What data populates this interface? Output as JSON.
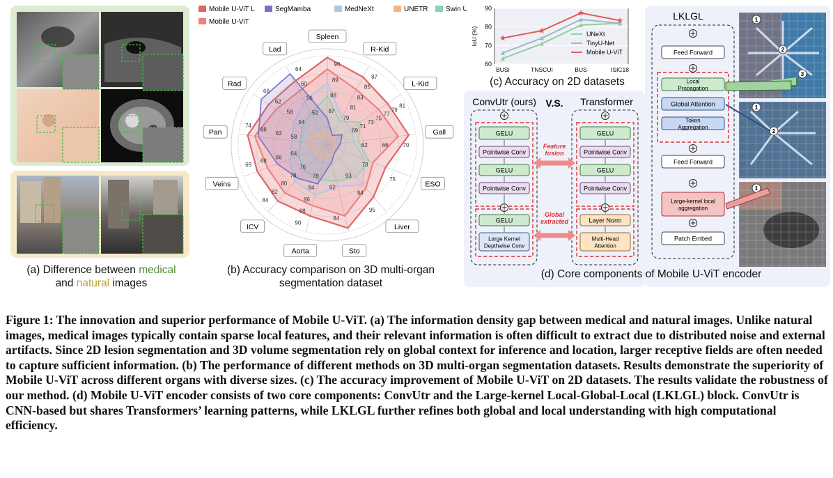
{
  "panel_a": {
    "caption_prefix": "(a) Difference between ",
    "caption_medical": "medical",
    "caption_and": "and ",
    "caption_natural": "natural",
    "caption_suffix": " images",
    "colors": {
      "medical": "#4f8f34",
      "natural": "#c8a12a",
      "medical_bg": "#dcebd2",
      "natural_bg": "#f6e9c8"
    }
  },
  "panel_b": {
    "caption_line1": "(b) Accuracy comparison on 3D multi-organ",
    "caption_line2": "segmentation dataset",
    "chart_data": {
      "type": "radar",
      "legend": [
        "Mobile U-ViT L",
        "SegMamba",
        "MedNeXt",
        "UNETR",
        "Swin UNETR",
        "Mobile U-ViT"
      ],
      "axes": [
        "Spleen",
        "R-Kid",
        "L-Kid",
        "Gall",
        "ESO",
        "Liver",
        "Sto",
        "Aorta",
        "ICV",
        "Veins",
        "Pan",
        "Rad",
        "Lad"
      ],
      "tick_labels": [
        [
          "87",
          "88",
          "89",
          "90"
        ],
        [
          "79",
          "81",
          "83",
          "85",
          "87"
        ],
        [
          "69",
          "71",
          "73",
          "75",
          "77",
          "79",
          "81"
        ],
        [
          "62",
          "66",
          "70"
        ],
        [
          "73",
          "75"
        ],
        [
          "93",
          "94",
          "95"
        ],
        [
          "92",
          "84"
        ],
        [
          "78",
          "84",
          "86",
          "88",
          "90"
        ],
        [
          "76",
          "78",
          "80",
          "82",
          "84"
        ],
        [
          "64",
          "66",
          "68",
          "69"
        ],
        [
          "58",
          "63",
          "68",
          "74"
        ],
        [
          "54",
          "58",
          "62",
          "66"
        ],
        [
          "52",
          "56",
          "60",
          "64"
        ]
      ],
      "series": [
        {
          "name": "Mobile U-ViT L",
          "values": [
            0.98,
            0.86,
            0.82,
            0.92,
            0.7,
            0.78,
            0.96,
            0.82,
            0.84,
            0.84,
            0.9,
            0.8,
            0.8
          ]
        },
        {
          "name": "SegMamba",
          "values": [
            0.3,
            0.12,
            0.2,
            0.15,
            0.12,
            0.12,
            0.2,
            0.45,
            0.5,
            0.6,
            0.78,
            0.9,
            0.9
          ]
        },
        {
          "name": "MedNeXt",
          "values": [
            0.7,
            0.35,
            0.32,
            0.3,
            0.45,
            0.6,
            0.48,
            0.58,
            0.55,
            0.45,
            0.4,
            0.45,
            0.55
          ]
        },
        {
          "name": "UNETR",
          "values": [
            0.15,
            0.08,
            0.1,
            0.1,
            0.08,
            0.1,
            0.12,
            0.15,
            0.15,
            0.18,
            0.2,
            0.2,
            0.15
          ]
        },
        {
          "name": "Swin UNETR",
          "values": [
            0.55,
            0.3,
            0.45,
            0.35,
            0.5,
            0.48,
            0.42,
            0.4,
            0.38,
            0.35,
            0.3,
            0.35,
            0.4
          ]
        },
        {
          "name": "Mobile U-ViT",
          "values": [
            0.85,
            0.7,
            0.7,
            0.8,
            0.55,
            0.65,
            0.82,
            0.7,
            0.72,
            0.72,
            0.82,
            0.7,
            0.68
          ]
        }
      ],
      "colors": [
        "#e06666",
        "#7b6fc4",
        "#a8c8e8",
        "#f4b183",
        "#8fd1b0",
        "#f08080"
      ]
    }
  },
  "panel_c": {
    "caption": "(c) Accuracy on 2D datasets",
    "chart_data": {
      "type": "line",
      "categories": [
        "BUSI",
        "TNSCUI",
        "BUS",
        "ISIC18"
      ],
      "ylabel": "IoU (%)",
      "ylim": [
        60,
        90
      ],
      "yticks": [
        "60",
        "70",
        "80",
        "90"
      ],
      "series": [
        {
          "name": "UNeXt",
          "values": [
            63,
            71,
            81,
            82
          ],
          "color": "#8fcfa0"
        },
        {
          "name": "TinyU-Net",
          "values": [
            66,
            74,
            84,
            82
          ],
          "color": "#9db7c9"
        },
        {
          "name": "Mobile U-ViT",
          "values": [
            74,
            78,
            87.5,
            83.5
          ],
          "color": "#e05a5a"
        }
      ]
    }
  },
  "panel_d": {
    "caption": "(d) Core components of Mobile U-ViT encoder",
    "convutr_title": "ConvUtr (ours)",
    "vs": "V.S.",
    "transformer_title": "Transformer",
    "feature_fusion": "Feature fusion",
    "global_extracted": "Global extracted",
    "convutr_blocks": [
      "GELU",
      "Pointwise Conv",
      "GELU",
      "Pointwise Conv",
      "GELU",
      "Large Kernel Depthwise Conv"
    ],
    "transformer_blocks": [
      "GELU",
      "Pointwise Conv",
      "GELU",
      "Pointwise Conv",
      "Layer Norm",
      "Multi-Head Attention"
    ],
    "lklgl_title": "LKLGL",
    "lklgl_blocks": [
      "Feed Forward",
      "Local Propagation",
      "Global Attention",
      "Token Aggregation",
      "Feed Forward",
      "Large-kernel local aggregation",
      "Patch Embed"
    ],
    "markers": [
      "1",
      "2",
      "3"
    ]
  },
  "figure_caption": "Figure 1: The innovation and superior performance of Mobile U-ViT. (a) The information density gap between medical and natural images. Unlike natural images, medical images typically contain sparse local features, and their relevant information is often difficult to extract due to distributed noise and external artifacts. Since 2D lesion segmentation and 3D volume segmentation rely on global context for inference and location, larger receptive fields are often needed to capture sufficient information. (b) The performance of different methods on 3D multi-organ segmentation datasets. Results demonstrate the superiority of Mobile U-ViT across different organs with diverse sizes. (c) The accuracy improvement of Mobile U-ViT on 2D datasets. The results validate the robustness of our method. (d) Mobile U-ViT encoder consists of two core components: ConvUtr and the Large-kernel Local-Global-Local (LKLGL) block. ConvUtr is CNN-based but shares Transformers’ learning patterns, while LKLGL further refines both global and local understanding with high computational efficiency."
}
